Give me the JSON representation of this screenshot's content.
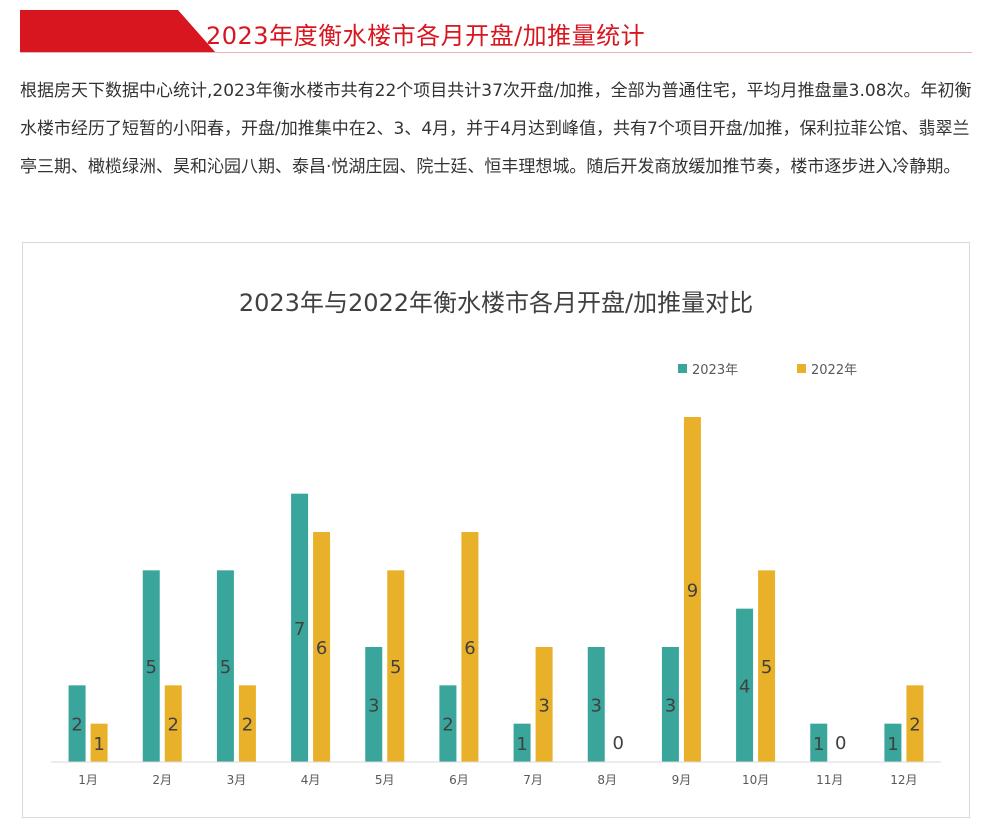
{
  "header": {
    "title": "2023年度衡水楼市各月开盘/加推量统计",
    "accent_color": "#d8161f"
  },
  "intro": {
    "text": "根据房天下数据中心统计,2023年衡水楼市共有22个项目共计37次开盘/加推，全部为普通住宅，平均月推盘量3.08次。年初衡水楼市经历了短暂的小阳春，开盘/加推集中在2、3、4月，并于4月达到峰值，共有7个项目开盘/加推，保利拉菲公馆、翡翠兰亭三期、橄榄绿洲、昊和沁园八期、泰昌·悦湖庄园、院士廷、恒丰理想城。随后开发商放缓加推节奏，楼市逐步进入冷静期。"
  },
  "chart_data": {
    "type": "bar",
    "title": "2023年与2022年衡水楼市各月开盘/加推量对比",
    "categories": [
      "1月",
      "2月",
      "3月",
      "4月",
      "5月",
      "6月",
      "7月",
      "8月",
      "9月",
      "10月",
      "11月",
      "12月"
    ],
    "series": [
      {
        "name": "2023年",
        "values": [
          2,
          5,
          5,
          7,
          3,
          2,
          1,
          3,
          3,
          4,
          1,
          1
        ],
        "color": "#3aa59a"
      },
      {
        "name": "2022年",
        "values": [
          1,
          2,
          2,
          6,
          5,
          6,
          3,
          0,
          9,
          5,
          0,
          2
        ],
        "color": "#e9b129"
      }
    ],
    "ylim": [
      0,
      9
    ],
    "grid": false,
    "legend_position": "top-right",
    "data_labels": true
  }
}
